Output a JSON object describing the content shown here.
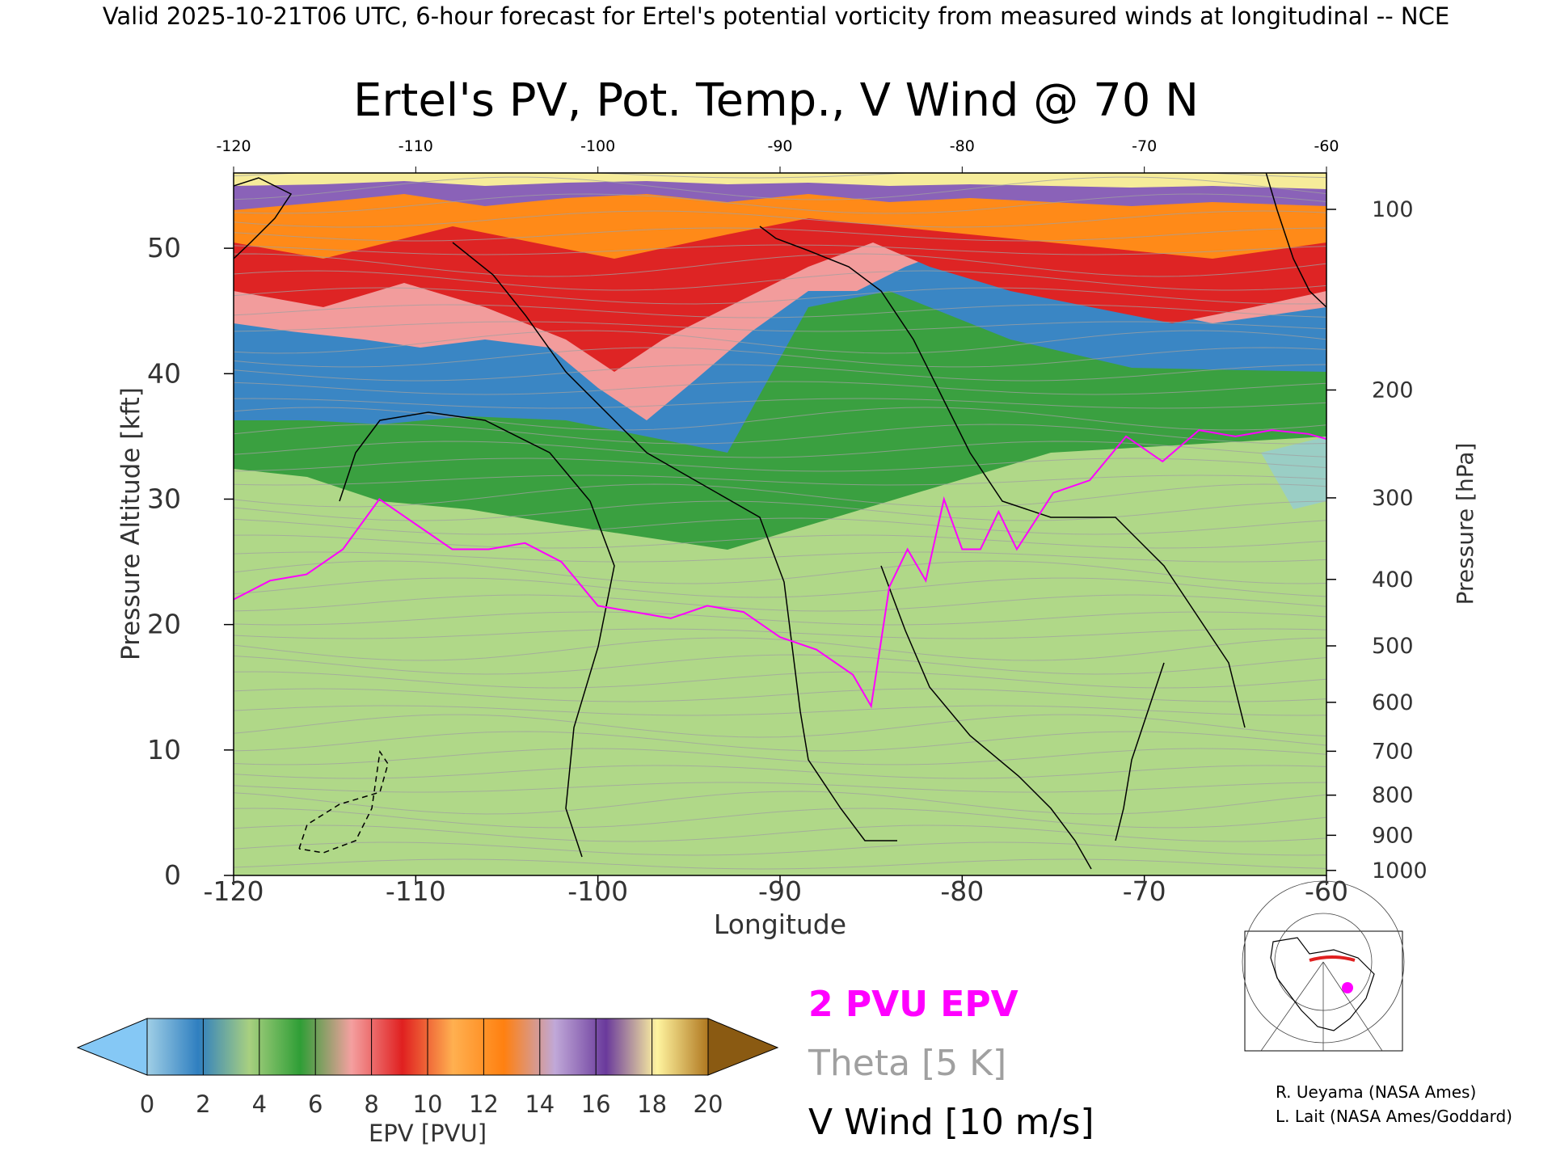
{
  "header": {
    "caption": "Valid 2025-10-21T06 UTC, 6-hour forecast for Ertel's potential vorticity from measured winds at longitudinal -- NCE"
  },
  "chart_data": {
    "type": "heatmap",
    "title": "Ertel's PV, Pot. Temp., V Wind @ 70 N",
    "xlabel": "Longitude",
    "ylabel": "Pressure Altitude [kft]",
    "y2label": "Pressure [hPa]",
    "xlim": [
      -120,
      -60
    ],
    "ylim": [
      0,
      56
    ],
    "x_ticks": [
      "-120",
      "-110",
      "-100",
      "-90",
      "-80",
      "-70",
      "-60"
    ],
    "x_tick_values": [
      -120,
      -110,
      -100,
      -90,
      -80,
      -70,
      -60
    ],
    "y_ticks": [
      "0",
      "10",
      "20",
      "30",
      "40",
      "50"
    ],
    "y_tick_values": [
      0,
      10,
      20,
      30,
      40,
      50
    ],
    "pressure_ticks": [
      {
        "label": "100",
        "kft": 53.1
      },
      {
        "label": "200",
        "kft": 38.7
      },
      {
        "label": "300",
        "kft": 30.1
      },
      {
        "label": "400",
        "kft": 23.6
      },
      {
        "label": "500",
        "kft": 18.3
      },
      {
        "label": "600",
        "kft": 13.8
      },
      {
        "label": "700",
        "kft": 9.9
      },
      {
        "label": "800",
        "kft": 6.4
      },
      {
        "label": "900",
        "kft": 3.2
      },
      {
        "label": "1000",
        "kft": 0.4
      }
    ],
    "legend": {
      "pv_line": "2 PVU EPV",
      "theta": "Theta [5 K]",
      "wind": "V Wind [10 m/s]"
    },
    "colorbar": {
      "label": "EPV [PVU]",
      "ticks": [
        "0",
        "2",
        "4",
        "6",
        "8",
        "10",
        "12",
        "14",
        "16",
        "18",
        "20"
      ],
      "low_color": "#85c8f5",
      "high_color": "#8a5a12",
      "colors": [
        "#a0cfe6",
        "#2f7fc0",
        "#a8d080",
        "#2f9e36",
        "#f4a0a0",
        "#e02020",
        "#ffb050",
        "#ff8010",
        "#c0a8d8",
        "#6a3a9c",
        "#fff4a0",
        "#b07820"
      ]
    },
    "colors": {
      "pv_line": "#ff00ff",
      "theta": "#a0a0a0",
      "wind": "#000000"
    },
    "tropopause_2pvu": {
      "lon": [
        -120,
        -118,
        -116,
        -114,
        -112,
        -110,
        -108,
        -106,
        -104,
        -102,
        -100,
        -98,
        -96,
        -94,
        -92,
        -90,
        -88,
        -86,
        -85,
        -84,
        -83,
        -82,
        -81,
        -80,
        -79,
        -78,
        -77,
        -75,
        -73,
        -71,
        -69,
        -67,
        -65,
        -63,
        -61,
        -60
      ],
      "kft": [
        22,
        23.5,
        24,
        26,
        30,
        28,
        26,
        26,
        26.5,
        25,
        21.5,
        21,
        20.5,
        21.5,
        21,
        19,
        18,
        16,
        13.5,
        23,
        26,
        23.5,
        30,
        26,
        26,
        29,
        26,
        30.5,
        31.5,
        35,
        33,
        35.5,
        35,
        35.5,
        35.2,
        34.8
      ]
    },
    "credits": [
      "R. Ueyama (NASA Ames)",
      "L. Lait (NASA Ames/Goddard)"
    ]
  }
}
